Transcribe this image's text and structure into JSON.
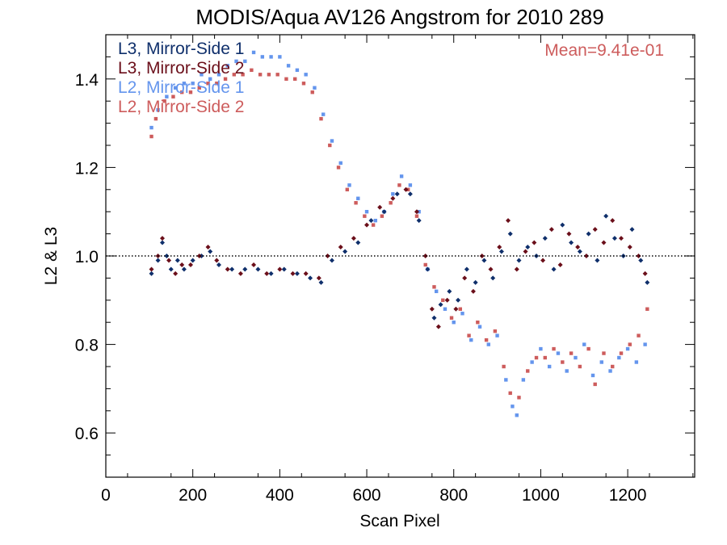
{
  "chart_data": {
    "type": "scatter",
    "title": "MODIS/Aqua AV126 Angstrom for 2010 289",
    "xlabel": "Scan Pixel",
    "ylabel": "L2 & L3",
    "xlim": [
      0,
      1354
    ],
    "ylim": [
      0.5,
      1.5
    ],
    "xticks": [
      {
        "value": 0,
        "label": "0"
      },
      {
        "value": 200,
        "label": "200"
      },
      {
        "value": 400,
        "label": "400"
      },
      {
        "value": 600,
        "label": "600"
      },
      {
        "value": 800,
        "label": "800"
      },
      {
        "value": 1000,
        "label": "1000"
      },
      {
        "value": 1200,
        "label": "1200"
      }
    ],
    "yticks": [
      {
        "value": 0.6,
        "label": "0.6"
      },
      {
        "value": 0.8,
        "label": "0.8"
      },
      {
        "value": 1.0,
        "label": "1.0"
      },
      {
        "value": 1.2,
        "label": "1.2"
      },
      {
        "value": 1.4,
        "label": "1.4"
      }
    ],
    "reference_line": {
      "y": 1.0,
      "style": "dotted"
    },
    "annotation": {
      "text": "Mean=9.41e-01",
      "color": "#cd5c5c"
    },
    "legend_position": "top-left",
    "grid": false,
    "series": [
      {
        "name": "L3, Mirror-Side 1",
        "color": "#0f2f6b",
        "marker": "diamond",
        "points": [
          [
            105,
            0.96
          ],
          [
            120,
            0.99
          ],
          [
            130,
            1.03
          ],
          [
            140,
            1.0
          ],
          [
            150,
            0.97
          ],
          [
            165,
            0.99
          ],
          [
            180,
            0.97
          ],
          [
            200,
            0.99
          ],
          [
            220,
            1.0
          ],
          [
            240,
            1.01
          ],
          [
            260,
            0.98
          ],
          [
            290,
            0.97
          ],
          [
            320,
            0.97
          ],
          [
            350,
            0.97
          ],
          [
            380,
            0.96
          ],
          [
            410,
            0.97
          ],
          [
            440,
            0.96
          ],
          [
            470,
            0.95
          ],
          [
            495,
            0.94
          ],
          [
            520,
            0.99
          ],
          [
            550,
            1.01
          ],
          [
            580,
            1.03
          ],
          [
            610,
            1.08
          ],
          [
            640,
            1.1
          ],
          [
            670,
            1.14
          ],
          [
            700,
            1.14
          ],
          [
            720,
            1.08
          ],
          [
            740,
            0.97
          ],
          [
            755,
            0.86
          ],
          [
            770,
            0.89
          ],
          [
            790,
            0.92
          ],
          [
            810,
            0.9
          ],
          [
            830,
            0.97
          ],
          [
            850,
            0.94
          ],
          [
            870,
            0.99
          ],
          [
            890,
            0.95
          ],
          [
            910,
            1.01
          ],
          [
            930,
            1.05
          ],
          [
            950,
            0.99
          ],
          [
            970,
            1.02
          ],
          [
            990,
            1.0
          ],
          [
            1010,
            1.04
          ],
          [
            1030,
            0.97
          ],
          [
            1050,
            1.07
          ],
          [
            1070,
            1.03
          ],
          [
            1090,
            1.01
          ],
          [
            1110,
            1.05
          ],
          [
            1130,
            0.99
          ],
          [
            1150,
            1.09
          ],
          [
            1170,
            1.04
          ],
          [
            1190,
            1.0
          ],
          [
            1210,
            1.06
          ],
          [
            1230,
            0.99
          ],
          [
            1245,
            0.94
          ]
        ]
      },
      {
        "name": "L3, Mirror-Side 2",
        "color": "#6b0f1a",
        "marker": "diamond",
        "points": [
          [
            105,
            0.97
          ],
          [
            120,
            1.0
          ],
          [
            130,
            1.04
          ],
          [
            145,
            0.99
          ],
          [
            160,
            0.96
          ],
          [
            175,
            0.98
          ],
          [
            195,
            0.98
          ],
          [
            215,
            1.0
          ],
          [
            235,
            1.02
          ],
          [
            255,
            0.99
          ],
          [
            280,
            0.97
          ],
          [
            310,
            0.96
          ],
          [
            340,
            0.98
          ],
          [
            370,
            0.96
          ],
          [
            400,
            0.97
          ],
          [
            430,
            0.96
          ],
          [
            460,
            0.96
          ],
          [
            490,
            0.95
          ],
          [
            510,
            1.0
          ],
          [
            540,
            1.02
          ],
          [
            570,
            1.04
          ],
          [
            600,
            1.07
          ],
          [
            630,
            1.11
          ],
          [
            660,
            1.13
          ],
          [
            690,
            1.15
          ],
          [
            715,
            1.1
          ],
          [
            735,
            1.0
          ],
          [
            750,
            0.88
          ],
          [
            765,
            0.84
          ],
          [
            785,
            0.9
          ],
          [
            805,
            0.88
          ],
          [
            825,
            0.95
          ],
          [
            845,
            0.92
          ],
          [
            865,
            1.0
          ],
          [
            885,
            0.97
          ],
          [
            905,
            1.02
          ],
          [
            925,
            1.08
          ],
          [
            945,
            0.97
          ],
          [
            965,
            1.01
          ],
          [
            985,
            1.03
          ],
          [
            1005,
            0.99
          ],
          [
            1025,
            1.06
          ],
          [
            1045,
            0.98
          ],
          [
            1065,
            1.05
          ],
          [
            1085,
            1.02
          ],
          [
            1105,
            1.0
          ],
          [
            1125,
            1.06
          ],
          [
            1145,
            1.03
          ],
          [
            1165,
            1.08
          ],
          [
            1185,
            1.04
          ],
          [
            1205,
            1.02
          ],
          [
            1225,
            1.0
          ],
          [
            1240,
            0.96
          ]
        ]
      },
      {
        "name": "L2, Mirror-Side 1",
        "color": "#6495ed",
        "marker": "square",
        "points": [
          [
            105,
            1.29
          ],
          [
            120,
            1.33
          ],
          [
            140,
            1.36
          ],
          [
            160,
            1.38
          ],
          [
            180,
            1.39
          ],
          [
            200,
            1.39
          ],
          [
            220,
            1.41
          ],
          [
            240,
            1.4
          ],
          [
            260,
            1.41
          ],
          [
            280,
            1.43
          ],
          [
            300,
            1.44
          ],
          [
            320,
            1.44
          ],
          [
            340,
            1.46
          ],
          [
            360,
            1.45
          ],
          [
            380,
            1.45
          ],
          [
            400,
            1.45
          ],
          [
            420,
            1.43
          ],
          [
            440,
            1.42
          ],
          [
            460,
            1.41
          ],
          [
            480,
            1.38
          ],
          [
            500,
            1.32
          ],
          [
            520,
            1.26
          ],
          [
            540,
            1.21
          ],
          [
            560,
            1.16
          ],
          [
            580,
            1.13
          ],
          [
            600,
            1.1
          ],
          [
            620,
            1.08
          ],
          [
            640,
            1.1
          ],
          [
            660,
            1.14
          ],
          [
            680,
            1.18
          ],
          [
            700,
            1.16
          ],
          [
            720,
            1.1
          ],
          [
            740,
            0.97
          ],
          [
            760,
            0.92
          ],
          [
            780,
            0.88
          ],
          [
            800,
            0.85
          ],
          [
            820,
            0.87
          ],
          [
            840,
            0.81
          ],
          [
            860,
            0.84
          ],
          [
            880,
            0.8
          ],
          [
            900,
            0.82
          ],
          [
            920,
            0.72
          ],
          [
            935,
            0.66
          ],
          [
            945,
            0.64
          ],
          [
            960,
            0.72
          ],
          [
            980,
            0.76
          ],
          [
            1000,
            0.79
          ],
          [
            1020,
            0.75
          ],
          [
            1040,
            0.78
          ],
          [
            1060,
            0.74
          ],
          [
            1080,
            0.77
          ],
          [
            1100,
            0.8
          ],
          [
            1120,
            0.73
          ],
          [
            1140,
            0.76
          ],
          [
            1160,
            0.74
          ],
          [
            1180,
            0.77
          ],
          [
            1200,
            0.79
          ],
          [
            1220,
            0.76
          ],
          [
            1240,
            0.8
          ]
        ]
      },
      {
        "name": "L2, Mirror-Side 2",
        "color": "#cd5c5c",
        "marker": "square",
        "points": [
          [
            105,
            1.27
          ],
          [
            115,
            1.31
          ],
          [
            135,
            1.35
          ],
          [
            155,
            1.36
          ],
          [
            175,
            1.37
          ],
          [
            195,
            1.37
          ],
          [
            215,
            1.38
          ],
          [
            235,
            1.39
          ],
          [
            255,
            1.39
          ],
          [
            275,
            1.4
          ],
          [
            295,
            1.41
          ],
          [
            315,
            1.41
          ],
          [
            335,
            1.42
          ],
          [
            355,
            1.41
          ],
          [
            375,
            1.41
          ],
          [
            395,
            1.41
          ],
          [
            415,
            1.4
          ],
          [
            435,
            1.4
          ],
          [
            455,
            1.39
          ],
          [
            475,
            1.37
          ],
          [
            495,
            1.31
          ],
          [
            515,
            1.25
          ],
          [
            535,
            1.2
          ],
          [
            555,
            1.15
          ],
          [
            575,
            1.12
          ],
          [
            595,
            1.09
          ],
          [
            615,
            1.07
          ],
          [
            635,
            1.09
          ],
          [
            655,
            1.12
          ],
          [
            675,
            1.16
          ],
          [
            695,
            1.15
          ],
          [
            715,
            1.09
          ],
          [
            735,
            0.98
          ],
          [
            755,
            0.93
          ],
          [
            775,
            0.9
          ],
          [
            795,
            0.86
          ],
          [
            815,
            0.88
          ],
          [
            835,
            0.82
          ],
          [
            855,
            0.85
          ],
          [
            875,
            0.81
          ],
          [
            895,
            0.83
          ],
          [
            915,
            0.75
          ],
          [
            930,
            0.69
          ],
          [
            950,
            0.68
          ],
          [
            970,
            0.74
          ],
          [
            990,
            0.77
          ],
          [
            1010,
            0.77
          ],
          [
            1030,
            0.79
          ],
          [
            1050,
            0.76
          ],
          [
            1070,
            0.78
          ],
          [
            1090,
            0.75
          ],
          [
            1110,
            0.79
          ],
          [
            1125,
            0.71
          ],
          [
            1145,
            0.78
          ],
          [
            1165,
            0.75
          ],
          [
            1185,
            0.78
          ],
          [
            1205,
            0.8
          ],
          [
            1225,
            0.82
          ],
          [
            1245,
            0.88
          ]
        ]
      }
    ]
  }
}
